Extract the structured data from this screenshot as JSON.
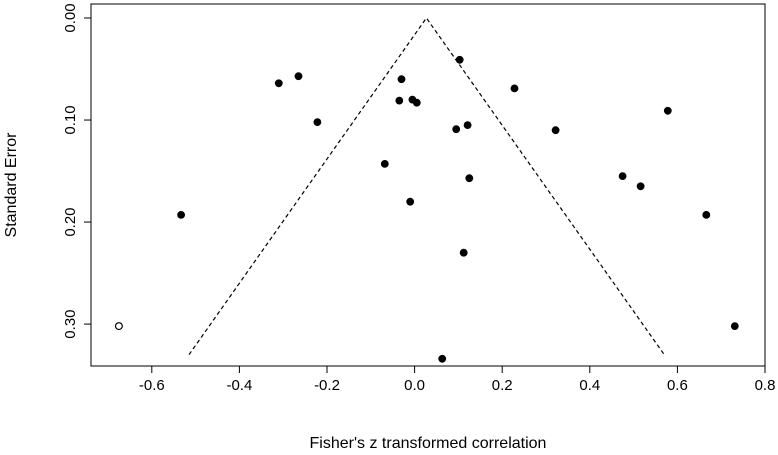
{
  "chart_data": {
    "type": "scatter",
    "title": "",
    "xlabel": "Fisher's z transformed correlation",
    "ylabel": "Standard Error",
    "xlim": [
      -0.7,
      0.8
    ],
    "ylim": [
      0.0,
      0.345
    ],
    "y_reversed": true,
    "x_ticks": [
      -0.6,
      -0.4,
      -0.2,
      0.0,
      0.2,
      0.4,
      0.6,
      0.8
    ],
    "x_tick_labels": [
      "-0.6",
      "-0.4",
      "-0.2",
      "0.0",
      "0.2",
      "0.4",
      "0.6",
      "0.8"
    ],
    "y_ticks": [
      0.0,
      0.1,
      0.2,
      0.3
    ],
    "y_tick_labels": [
      "0.00",
      "0.10",
      "0.20",
      "0.30"
    ],
    "grid": false,
    "funnel": {
      "apex": [
        0.027,
        0.0
      ],
      "left_base": [
        -0.515,
        0.33
      ],
      "right_base": [
        0.57,
        0.33
      ],
      "style": "dashed"
    },
    "series": [
      {
        "marker": "filled-circle",
        "color": "#000000",
        "points": [
          [
            -0.533,
            0.193
          ],
          [
            -0.31,
            0.064
          ],
          [
            -0.265,
            0.057
          ],
          [
            -0.222,
            0.102
          ],
          [
            -0.068,
            0.143
          ],
          [
            -0.035,
            0.081
          ],
          [
            -0.03,
            0.06
          ],
          [
            -0.01,
            0.18
          ],
          [
            -0.005,
            0.08
          ],
          [
            0.005,
            0.083
          ],
          [
            0.063,
            0.334
          ],
          [
            0.095,
            0.109
          ],
          [
            0.103,
            0.041
          ],
          [
            0.112,
            0.23
          ],
          [
            0.121,
            0.105
          ],
          [
            0.125,
            0.157
          ],
          [
            0.228,
            0.069
          ],
          [
            0.322,
            0.11
          ],
          [
            0.475,
            0.155
          ],
          [
            0.516,
            0.165
          ],
          [
            0.578,
            0.091
          ],
          [
            0.666,
            0.193
          ],
          [
            0.731,
            0.302
          ]
        ]
      },
      {
        "marker": "open-circle",
        "color": "#000000",
        "points": [
          [
            -0.675,
            0.302
          ]
        ]
      }
    ]
  }
}
